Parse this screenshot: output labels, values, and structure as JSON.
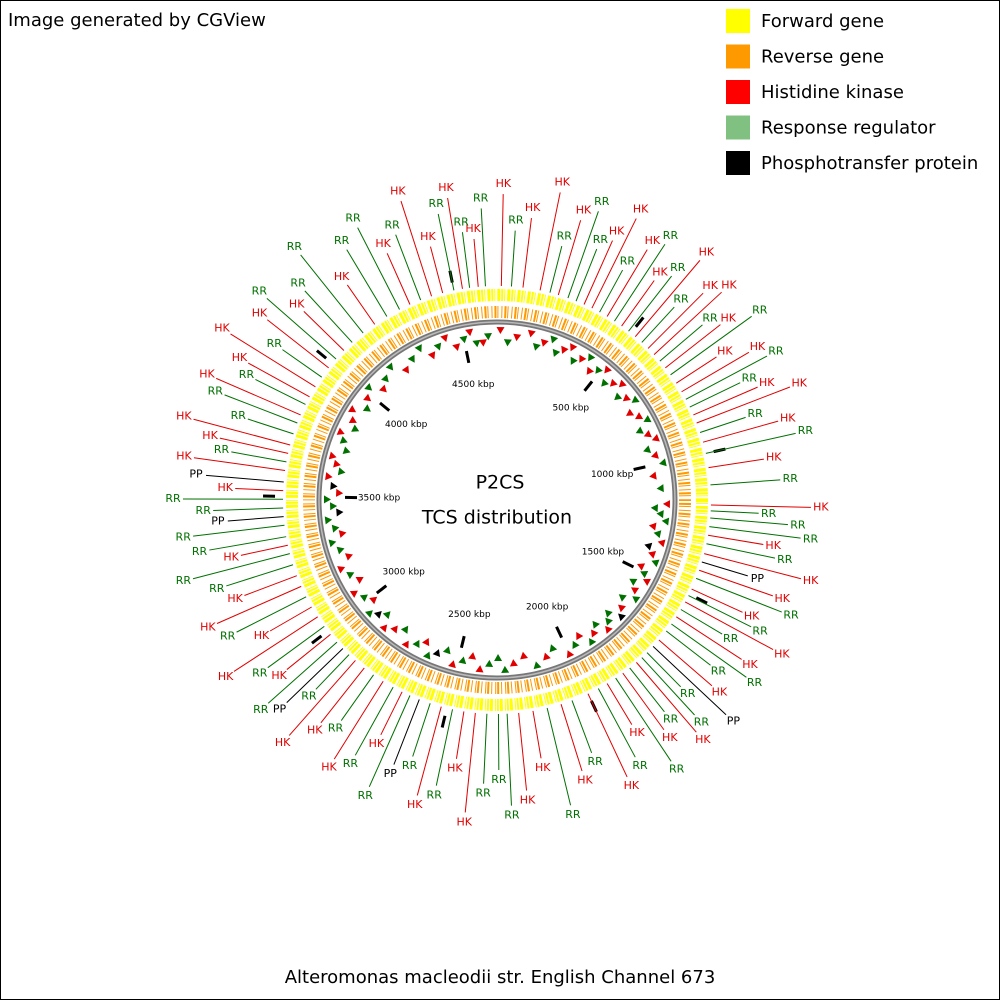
{
  "chart_data": {
    "type": "circular-genome",
    "header": "Image generated by CGView",
    "title": "P2CS",
    "subtitle": "TCS distribution",
    "footer": "Alteromonas macleodii str. English Channel 673",
    "legend": [
      {
        "name": "Forward gene",
        "color": "#ffff00"
      },
      {
        "name": "Reverse gene",
        "color": "#ff9900"
      },
      {
        "name": "Histidine kinase",
        "color": "#ff0000"
      },
      {
        "name": "Response regulator",
        "color": "#80c080"
      },
      {
        "name": "Phosphotransfer protein",
        "color": "#000000"
      }
    ],
    "label_colors": {
      "HK": "#e00000",
      "RR": "#007000",
      "PP": "#000000"
    },
    "lim": [
      0,
      4650
    ],
    "ticks": [
      {
        "value": 500,
        "label": "500 kbp"
      },
      {
        "value": 1000,
        "label": "1000 kbp"
      },
      {
        "value": 1500,
        "label": "1500 kbp"
      },
      {
        "value": 2000,
        "label": "2000 kbp"
      },
      {
        "value": 2500,
        "label": "2500 kbp"
      },
      {
        "value": 3000,
        "label": "3000 kbp"
      },
      {
        "value": 3500,
        "label": "3500 kbp"
      },
      {
        "value": 4000,
        "label": "4000 kbp"
      },
      {
        "value": 4500,
        "label": "4500 kbp"
      }
    ],
    "features": {
      "labels": [
        "HK",
        "RR",
        "HK",
        "RR",
        "HK",
        "HK",
        "RR",
        "HK",
        "RR",
        "RR",
        "HK",
        "HK",
        "RR",
        "HK",
        "RR",
        "HK",
        "RR",
        "HK",
        "RR",
        "HK",
        "HK",
        "RR",
        "HK",
        "RR",
        "HK",
        "HK",
        "RR",
        "RR",
        "HK",
        "HK",
        "RR",
        "HK",
        "RR",
        "HK",
        "RR",
        "HK",
        "RR",
        "RR",
        "RR",
        "HK",
        "RR",
        "HK",
        "PP",
        "HK",
        "RR",
        "HK",
        "RR",
        "HK",
        "RR",
        "HK",
        "RR",
        "RR",
        "HK",
        "PP",
        "RR",
        "RR",
        "HK",
        "RR",
        "HK",
        "RR",
        "HK",
        "RR",
        "HK",
        "RR",
        "HK",
        "RR",
        "HK",
        "HK",
        "RR",
        "RR",
        "RR",
        "HK",
        "HK",
        "RR",
        "HK",
        "RR",
        "PP",
        "RR",
        "HK",
        "RR",
        "HK",
        "RR",
        "HK",
        "HK",
        "RR",
        "PP",
        "RR",
        "HK",
        "RR",
        "HK",
        "HK",
        "RR",
        "HK",
        "HK",
        "RR",
        "RR",
        "HK",
        "RR",
        "RR",
        "PP",
        "RR",
        "RR",
        "HK",
        "PP",
        "HK",
        "RR",
        "HK",
        "HK",
        "RR",
        "RR",
        "HK",
        "RR",
        "HK",
        "HK",
        "RR",
        "HK",
        "RR",
        "HK",
        "RR",
        "RR",
        "HK",
        "RR",
        "RR",
        "HK",
        "RR",
        "HK",
        "HK",
        "RR",
        "HK",
        "RR"
      ],
      "positions": [
        4585,
        4610,
        15,
        50,
        90,
        150,
        185,
        215,
        250,
        280,
        310,
        340,
        370,
        400,
        430,
        460,
        490,
        520,
        550,
        580,
        610,
        640,
        670,
        700,
        735,
        770,
        800,
        830,
        860,
        890,
        925,
        960,
        1000,
        1050,
        1110,
        1180,
        1200,
        1225,
        1255,
        1285,
        1315,
        1350,
        1380,
        1410,
        1440,
        1480,
        1505,
        1530,
        1560,
        1590,
        1620,
        1650,
        1690,
        1720,
        1750,
        1775,
        1800,
        1830,
        1860,
        1890,
        1925,
        1960,
        2000,
        2060,
        2100,
        2150,
        2200,
        2250,
        2290,
        2320,
        2360,
        2400,
        2440,
        2480,
        2520,
        2560,
        2600,
        2635,
        2665,
        2700,
        2740,
        2780,
        2820,
        2860,
        2890,
        2920,
        2950,
        2985,
        3020,
        3060,
        3100,
        3140,
        3180,
        3220,
        3260,
        3300,
        3330,
        3360,
        3400,
        3430,
        3460,
        3490,
        3520,
        3550,
        3590,
        3620,
        3650,
        3680,
        3720,
        3760,
        3790,
        3830,
        3860,
        3900,
        3940,
        3980,
        4020,
        4060,
        4100,
        4150,
        4200,
        4250,
        4300,
        4340,
        4380,
        4420,
        4460,
        4500,
        4530,
        4555
      ]
    }
  }
}
